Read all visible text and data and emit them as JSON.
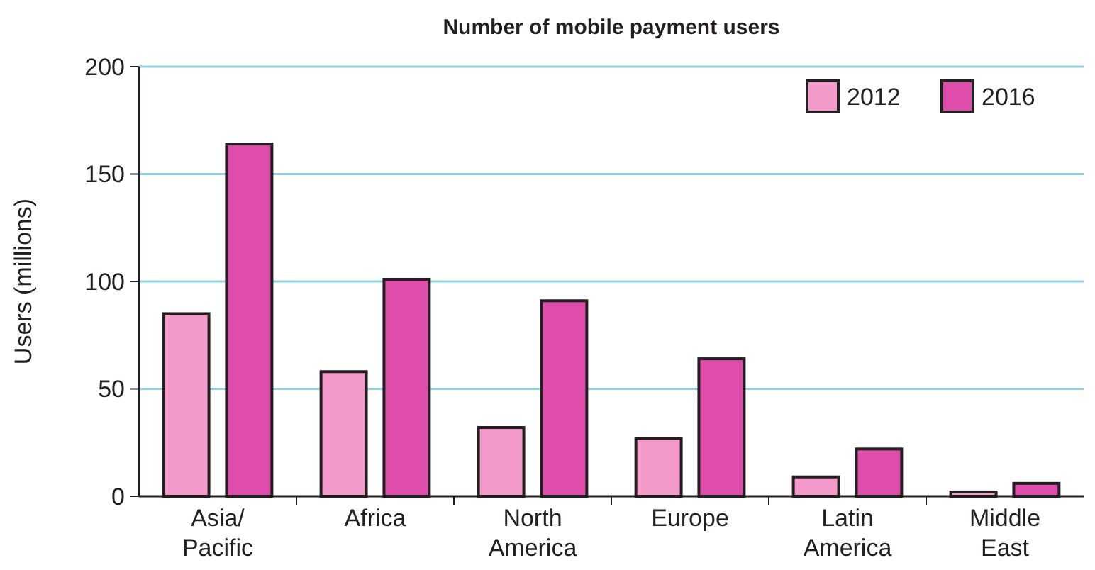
{
  "chart_data": {
    "type": "bar",
    "title": "Number of mobile payment users",
    "ylabel": "Users (millions)",
    "categories": [
      "Asia/\nPacific",
      "Africa",
      "North\nAmerica",
      "Europe",
      "Latin\nAmerica",
      "Middle\nEast"
    ],
    "series": [
      {
        "name": "2012",
        "color": "#f49acb",
        "values": [
          85,
          58,
          32,
          27,
          9,
          2
        ]
      },
      {
        "name": "2016",
        "color": "#de4dab",
        "values": [
          164,
          101,
          91,
          64,
          22,
          6
        ]
      }
    ],
    "ylim": [
      0,
      200
    ],
    "yticks": [
      0,
      50,
      100,
      150,
      200
    ],
    "grid": "y",
    "legend": "top right"
  }
}
